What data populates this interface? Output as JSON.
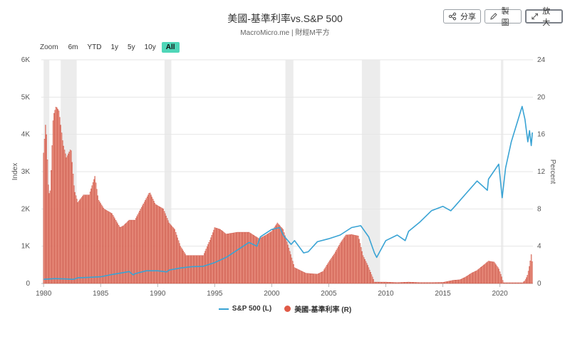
{
  "header": {
    "title": "美國-基準利率vs.S&P 500",
    "subtitle": "MacroMicro.me | 財經M平方"
  },
  "toolbar": {
    "share_label": "分享",
    "draw_label": "製圖",
    "expand_label": "放大"
  },
  "zoom": {
    "label": "Zoom",
    "options": [
      "6m",
      "YTD",
      "1y",
      "5y",
      "10y",
      "All"
    ],
    "active": "All"
  },
  "colors": {
    "sp500": "#39a3d4",
    "rate_fill": "#f6a896",
    "rate_stroke": "#c0392b",
    "legend_rate": "#e05a47",
    "recession": "#ececec",
    "grid": "#e6e6e6",
    "zoom_active": "#4fd6b8"
  },
  "chart_data": {
    "type": "line",
    "xlabel": "",
    "ylabel_left": "Index",
    "ylabel_right": "Percent",
    "xlim": [
      1979.8,
      2022.9
    ],
    "x_ticks": [
      "1980",
      "1985",
      "1990",
      "1995",
      "2000",
      "2005",
      "2010",
      "2015",
      "2020"
    ],
    "ylim_left": [
      0,
      6000
    ],
    "y_ticks_left": [
      "0",
      "1K",
      "2K",
      "3K",
      "4K",
      "5K",
      "6K"
    ],
    "ylim_right": [
      0,
      24
    ],
    "y_ticks_right": [
      "0",
      "4",
      "8",
      "12",
      "16",
      "20",
      "24"
    ],
    "grid": true,
    "legend_position": "bottom",
    "recessions": [
      [
        1980.0,
        1980.5
      ],
      [
        1981.5,
        1982.9
      ],
      [
        1990.6,
        1991.2
      ],
      [
        2001.2,
        2001.9
      ],
      [
        2007.9,
        2009.5
      ],
      [
        2020.1,
        2020.3
      ]
    ],
    "series": [
      {
        "name": "S&P 500 (L)",
        "axis": "left",
        "style": "line",
        "points": [
          [
            1980.0,
            110
          ],
          [
            1981.0,
            130
          ],
          [
            1982.0,
            120
          ],
          [
            1982.6,
            110
          ],
          [
            1983.0,
            150
          ],
          [
            1984.0,
            165
          ],
          [
            1985.0,
            180
          ],
          [
            1986.0,
            240
          ],
          [
            1987.5,
            320
          ],
          [
            1987.85,
            230
          ],
          [
            1988.0,
            260
          ],
          [
            1989.0,
            340
          ],
          [
            1990.0,
            340
          ],
          [
            1990.8,
            310
          ],
          [
            1991.0,
            360
          ],
          [
            1992.0,
            415
          ],
          [
            1993.0,
            450
          ],
          [
            1994.0,
            460
          ],
          [
            1995.0,
            560
          ],
          [
            1996.0,
            700
          ],
          [
            1997.0,
            900
          ],
          [
            1998.0,
            1100
          ],
          [
            1998.7,
            1000
          ],
          [
            1999.0,
            1250
          ],
          [
            2000.0,
            1450
          ],
          [
            2000.7,
            1500
          ],
          [
            2001.0,
            1300
          ],
          [
            2001.7,
            1050
          ],
          [
            2002.0,
            1150
          ],
          [
            2002.8,
            820
          ],
          [
            2003.2,
            850
          ],
          [
            2004.0,
            1120
          ],
          [
            2005.0,
            1200
          ],
          [
            2006.0,
            1300
          ],
          [
            2007.0,
            1500
          ],
          [
            2007.8,
            1550
          ],
          [
            2008.5,
            1250
          ],
          [
            2009.0,
            820
          ],
          [
            2009.2,
            700
          ],
          [
            2010.0,
            1150
          ],
          [
            2011.0,
            1300
          ],
          [
            2011.7,
            1150
          ],
          [
            2012.0,
            1400
          ],
          [
            2013.0,
            1650
          ],
          [
            2014.0,
            1950
          ],
          [
            2015.0,
            2070
          ],
          [
            2015.7,
            1950
          ],
          [
            2016.0,
            2050
          ],
          [
            2017.0,
            2400
          ],
          [
            2018.0,
            2750
          ],
          [
            2018.9,
            2500
          ],
          [
            2019.0,
            2800
          ],
          [
            2019.9,
            3200
          ],
          [
            2020.2,
            2300
          ],
          [
            2020.5,
            3100
          ],
          [
            2021.0,
            3800
          ],
          [
            2021.5,
            4300
          ],
          [
            2021.95,
            4750
          ],
          [
            2022.2,
            4400
          ],
          [
            2022.45,
            3800
          ],
          [
            2022.6,
            4100
          ],
          [
            2022.75,
            3700
          ],
          [
            2022.85,
            4050
          ]
        ]
      },
      {
        "name": "美國-基準利率 (R)",
        "axis": "right",
        "style": "bar",
        "points": [
          [
            1980.0,
            14
          ],
          [
            1980.2,
            17.6
          ],
          [
            1980.45,
            9.5
          ],
          [
            1980.6,
            10
          ],
          [
            1980.85,
            18
          ],
          [
            1981.1,
            19
          ],
          [
            1981.35,
            18.5
          ],
          [
            1981.7,
            15
          ],
          [
            1982.0,
            13.5
          ],
          [
            1982.4,
            14.5
          ],
          [
            1982.7,
            10
          ],
          [
            1983.0,
            8.7
          ],
          [
            1983.5,
            9.5
          ],
          [
            1984.0,
            9.5
          ],
          [
            1984.5,
            11.5
          ],
          [
            1984.8,
            9
          ],
          [
            1985.3,
            8
          ],
          [
            1986.0,
            7.5
          ],
          [
            1986.7,
            6
          ],
          [
            1987.0,
            6.2
          ],
          [
            1987.5,
            6.8
          ],
          [
            1988.0,
            6.8
          ],
          [
            1988.6,
            8.2
          ],
          [
            1989.3,
            9.8
          ],
          [
            1989.8,
            8.5
          ],
          [
            1990.5,
            8.0
          ],
          [
            1991.0,
            6.5
          ],
          [
            1991.5,
            5.8
          ],
          [
            1992.0,
            4
          ],
          [
            1992.5,
            3.0
          ],
          [
            1993.0,
            3.0
          ],
          [
            1994.0,
            3.0
          ],
          [
            1994.6,
            4.7
          ],
          [
            1995.0,
            6
          ],
          [
            1995.5,
            5.8
          ],
          [
            1996.0,
            5.3
          ],
          [
            1997.0,
            5.5
          ],
          [
            1998.0,
            5.5
          ],
          [
            1998.9,
            4.8
          ],
          [
            1999.5,
            5.2
          ],
          [
            2000.0,
            5.6
          ],
          [
            2000.5,
            6.5
          ],
          [
            2001.0,
            5.8
          ],
          [
            2001.5,
            3.8
          ],
          [
            2002.0,
            1.7
          ],
          [
            2003.0,
            1.1
          ],
          [
            2004.0,
            1.0
          ],
          [
            2004.5,
            1.3
          ],
          [
            2005.0,
            2.3
          ],
          [
            2005.5,
            3.2
          ],
          [
            2006.0,
            4.3
          ],
          [
            2006.5,
            5.2
          ],
          [
            2007.0,
            5.25
          ],
          [
            2007.6,
            5.1
          ],
          [
            2008.0,
            3.0
          ],
          [
            2008.4,
            2.0
          ],
          [
            2008.9,
            0.5
          ],
          [
            2009.0,
            0.15
          ],
          [
            2010.0,
            0.15
          ],
          [
            2011.0,
            0.1
          ],
          [
            2012.0,
            0.15
          ],
          [
            2013.0,
            0.1
          ],
          [
            2014.0,
            0.1
          ],
          [
            2015.0,
            0.12
          ],
          [
            2015.95,
            0.35
          ],
          [
            2016.5,
            0.4
          ],
          [
            2017.0,
            0.7
          ],
          [
            2017.5,
            1.1
          ],
          [
            2018.0,
            1.4
          ],
          [
            2018.5,
            1.9
          ],
          [
            2019.0,
            2.4
          ],
          [
            2019.5,
            2.3
          ],
          [
            2019.9,
            1.6
          ],
          [
            2020.2,
            0.6
          ],
          [
            2020.3,
            0.08
          ],
          [
            2021.0,
            0.08
          ],
          [
            2022.0,
            0.08
          ],
          [
            2022.2,
            0.3
          ],
          [
            2022.4,
            0.8
          ],
          [
            2022.55,
            1.6
          ],
          [
            2022.65,
            2.3
          ],
          [
            2022.75,
            3.1
          ],
          [
            2022.85,
            2.2
          ]
        ]
      }
    ]
  }
}
